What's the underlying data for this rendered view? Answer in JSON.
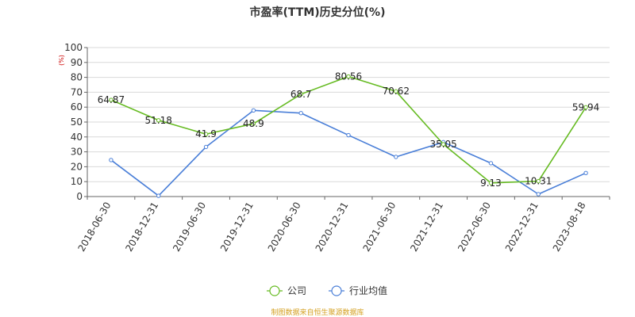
{
  "chart_data": {
    "type": "line",
    "title": "市盈率(TTM)历史分位(%)",
    "ylabel": "(%)",
    "xlabel": "",
    "ylim": [
      0,
      100
    ],
    "yticks": [
      0,
      10,
      20,
      30,
      40,
      50,
      60,
      70,
      80,
      90,
      100
    ],
    "categories": [
      "2018-06-30",
      "2018-12-31",
      "2019-06-30",
      "2019-12-31",
      "2020-06-30",
      "2020-12-31",
      "2021-06-30",
      "2021-12-31",
      "2022-06-30",
      "2022-12-31",
      "2023-08-18"
    ],
    "grid": true,
    "legend_position": "bottom-center",
    "series": [
      {
        "name": "公司",
        "color": "#66bb22",
        "values": [
          64.87,
          51.18,
          41.9,
          48.9,
          68.7,
          80.56,
          70.62,
          35.05,
          9.13,
          10.31,
          59.94
        ],
        "labels": [
          "64.87",
          "51.18",
          "41.9",
          "48.9",
          "68.7",
          "80.56",
          "70.62",
          "35.05",
          "9.13",
          "10.31",
          "59.94"
        ]
      },
      {
        "name": "行业均值",
        "color": "#4a7fd8",
        "values": [
          24.5,
          0.5,
          33.3,
          57.8,
          56.0,
          41.2,
          26.6,
          36.5,
          22.4,
          1.6,
          15.8
        ]
      }
    ],
    "source": "制图数据来自恒生聚源数据库"
  }
}
